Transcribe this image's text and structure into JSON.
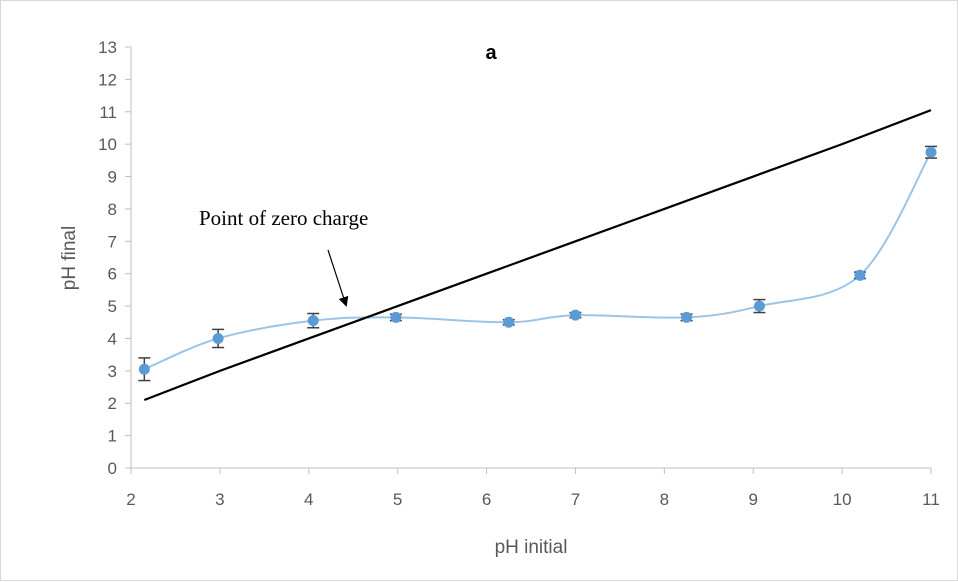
{
  "chart_data": {
    "type": "line",
    "title": "a",
    "xlabel": "pH initial",
    "ylabel": "pH final",
    "xlim": [
      2,
      11
    ],
    "ylim": [
      0,
      13
    ],
    "x_ticks": [
      2,
      3,
      4,
      5,
      6,
      7,
      8,
      9,
      10,
      11
    ],
    "y_ticks": [
      0,
      1,
      2,
      3,
      4,
      5,
      6,
      7,
      8,
      9,
      10,
      11,
      12,
      13
    ],
    "grid": false,
    "series": [
      {
        "style": "smooth-line-with-markers",
        "color": "#9dc3e6",
        "marker_color": "#5b9bd5",
        "x": [
          2.15,
          2.98,
          4.05,
          4.98,
          6.25,
          7.0,
          8.25,
          9.07,
          10.2,
          11.0
        ],
        "y": [
          3.05,
          4.0,
          4.55,
          4.65,
          4.5,
          4.72,
          4.65,
          5.0,
          5.95,
          9.75
        ],
        "error": [
          0.35,
          0.28,
          0.22,
          0.1,
          0.08,
          0.08,
          0.1,
          0.2,
          0.1,
          0.18
        ]
      },
      {
        "style": "line",
        "color": "#000000",
        "x": [
          2.15,
          3.0,
          4.0,
          5.0,
          6.0,
          7.0,
          8.0,
          9.0,
          10.0,
          11.0
        ],
        "y": [
          2.1,
          3.0,
          4.0,
          5.0,
          6.0,
          7.0,
          8.0,
          9.0,
          10.0,
          11.05
        ]
      }
    ],
    "annotations": [
      {
        "text": "Point of zero charge",
        "arrow_to": [
          4.5,
          4.9
        ]
      }
    ]
  }
}
